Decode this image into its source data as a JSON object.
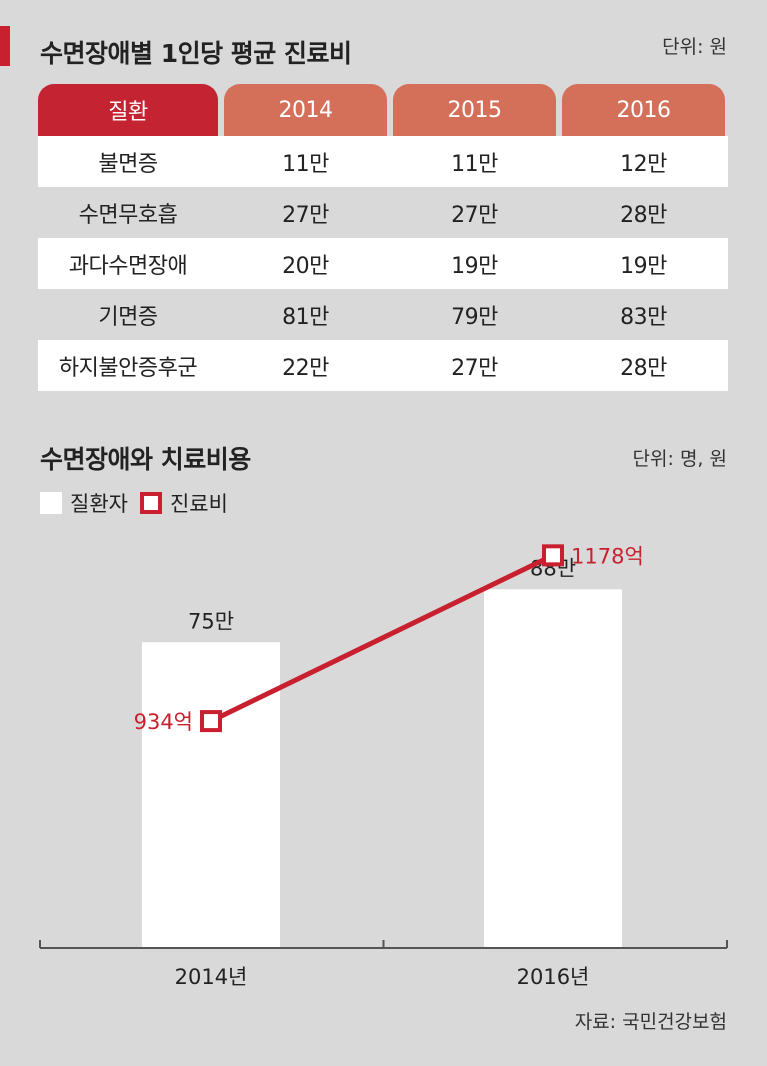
{
  "table": {
    "title": "수면장애별 1인당 평균 진료비",
    "unit": "단위: 원",
    "header": [
      "질환",
      "2014",
      "2015",
      "2016"
    ],
    "rows": [
      [
        "불면증",
        "11만",
        "11만",
        "12만"
      ],
      [
        "수면무호흡",
        "27만",
        "27만",
        "28만"
      ],
      [
        "과다수면장애",
        "20만",
        "19만",
        "19만"
      ],
      [
        "기면증",
        "81만",
        "79만",
        "83만"
      ],
      [
        "하지불안증후군",
        "22만",
        "27만",
        "28만"
      ]
    ]
  },
  "colors": {
    "accent": "#c8202e",
    "header_first": "#c42331",
    "header_year": "#d4705a",
    "background": "#d9d9d9",
    "bar": "#ffffff"
  },
  "chart_data": {
    "type": "bar",
    "title": "수면장애와 치료비용",
    "unit": "단위: 명, 원",
    "legend": [
      "질환자",
      "진료비"
    ],
    "categories": [
      "2014년",
      "2016년"
    ],
    "series": [
      {
        "name": "질환자",
        "type": "bar",
        "values": [
          75,
          88
        ],
        "labels": [
          "75만",
          "88만"
        ]
      },
      {
        "name": "진료비",
        "type": "line",
        "values": [
          934,
          1178
        ],
        "labels": [
          "934억",
          "1178억"
        ]
      }
    ],
    "bar_ylim": [
      0,
      105
    ],
    "line_ylim": [
      600,
      1230
    ]
  },
  "source": "자료: 국민건강보험"
}
